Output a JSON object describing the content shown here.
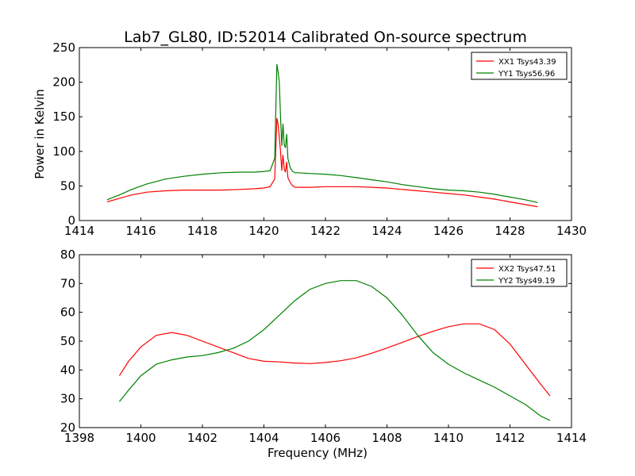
{
  "figure": {
    "title": "Lab7_GL80, ID:52014 Calibrated On-source spectrum"
  },
  "chart_data": [
    {
      "type": "line",
      "title": "Lab7_GL80, ID:52014 Calibrated On-source spectrum",
      "xlabel": "",
      "ylabel": "Power in Kelvin",
      "xlim": [
        1414,
        1430
      ],
      "ylim": [
        0,
        250
      ],
      "xticks": [
        "1414",
        "1416",
        "1418",
        "1420",
        "1422",
        "1424",
        "1426",
        "1428",
        "1430"
      ],
      "yticks": [
        "0",
        "50",
        "100",
        "150",
        "200",
        "250"
      ],
      "grid": false,
      "legend_position": "top-right",
      "series": [
        {
          "name": "XX1 Tsys43.39",
          "color": "#ff0000",
          "x": [
            1414.9,
            1415.3,
            1415.7,
            1416.2,
            1416.8,
            1417.4,
            1418.0,
            1418.6,
            1419.2,
            1419.7,
            1420.0,
            1420.2,
            1420.35,
            1420.42,
            1420.46,
            1420.5,
            1420.54,
            1420.58,
            1420.62,
            1420.66,
            1420.7,
            1420.74,
            1420.78,
            1420.82,
            1420.86,
            1420.9,
            1420.94,
            1420.98,
            1421.02,
            1421.1,
            1421.5,
            1422.0,
            1422.5,
            1423.0,
            1423.5,
            1424.0,
            1424.5,
            1425.0,
            1425.5,
            1426.0,
            1426.5,
            1427.0,
            1427.5,
            1428.0,
            1428.5,
            1428.9
          ],
          "y": [
            27,
            32,
            37,
            41,
            43,
            44,
            44,
            44,
            45,
            46,
            47,
            49,
            60,
            148,
            140,
            120,
            100,
            72,
            95,
            75,
            70,
            85,
            62,
            58,
            55,
            52,
            50,
            49,
            48,
            48,
            48,
            49,
            49,
            49,
            48,
            47,
            45,
            43,
            41,
            39,
            37,
            34,
            31,
            27,
            23,
            20
          ]
        },
        {
          "name": "YY1 Tsys56.96",
          "color": "#008000",
          "x": [
            1414.9,
            1415.3,
            1415.7,
            1416.2,
            1416.8,
            1417.4,
            1418.0,
            1418.6,
            1419.2,
            1419.7,
            1420.0,
            1420.2,
            1420.35,
            1420.42,
            1420.46,
            1420.5,
            1420.54,
            1420.58,
            1420.62,
            1420.66,
            1420.7,
            1420.74,
            1420.78,
            1420.82,
            1420.86,
            1420.9,
            1420.94,
            1420.98,
            1421.02,
            1421.1,
            1421.5,
            1422.0,
            1422.5,
            1423.0,
            1423.5,
            1424.0,
            1424.5,
            1425.0,
            1425.5,
            1426.0,
            1426.5,
            1427.0,
            1427.5,
            1428.0,
            1428.5,
            1428.9
          ],
          "y": [
            30,
            37,
            45,
            53,
            60,
            64,
            67,
            69,
            70,
            70,
            71,
            72,
            90,
            226,
            215,
            200,
            150,
            108,
            140,
            110,
            105,
            125,
            90,
            82,
            76,
            73,
            71,
            70,
            69,
            69,
            68,
            67,
            65,
            62,
            59,
            56,
            52,
            49,
            46,
            44,
            43,
            41,
            38,
            34,
            30,
            26
          ]
        }
      ]
    },
    {
      "type": "line",
      "title": "",
      "xlabel": "Frequency (MHz)",
      "ylabel": "",
      "xlim": [
        1398,
        1414
      ],
      "ylim": [
        20,
        80
      ],
      "xticks": [
        "1398",
        "1400",
        "1402",
        "1404",
        "1406",
        "1408",
        "1410",
        "1412",
        "1414"
      ],
      "yticks": [
        "20",
        "30",
        "40",
        "50",
        "60",
        "70",
        "80"
      ],
      "grid": false,
      "legend_position": "top-right",
      "series": [
        {
          "name": "XX2 Tsys47.51",
          "color": "#ff0000",
          "x": [
            1399.3,
            1399.6,
            1400.0,
            1400.5,
            1401.0,
            1401.5,
            1402.0,
            1402.5,
            1403.0,
            1403.5,
            1404.0,
            1404.5,
            1405.0,
            1405.5,
            1406.0,
            1406.5,
            1407.0,
            1407.5,
            1408.0,
            1408.5,
            1409.0,
            1409.5,
            1410.0,
            1410.5,
            1411.0,
            1411.5,
            1412.0,
            1412.5,
            1413.0,
            1413.3
          ],
          "y": [
            38,
            43,
            48,
            52,
            53,
            52,
            50,
            48,
            46,
            44,
            43,
            42.8,
            42.4,
            42.2,
            42.6,
            43.2,
            44.2,
            45.8,
            47.6,
            49.6,
            51.6,
            53.4,
            55,
            56,
            56,
            54,
            49,
            42,
            35,
            31
          ]
        },
        {
          "name": "YY2 Tsys49.19",
          "color": "#008000",
          "x": [
            1399.3,
            1399.6,
            1400.0,
            1400.5,
            1401.0,
            1401.5,
            1402.0,
            1402.5,
            1403.0,
            1403.5,
            1404.0,
            1404.5,
            1405.0,
            1405.5,
            1406.0,
            1406.5,
            1407.0,
            1407.5,
            1408.0,
            1408.5,
            1409.0,
            1409.5,
            1410.0,
            1410.5,
            1411.0,
            1411.5,
            1412.0,
            1412.5,
            1413.0,
            1413.3
          ],
          "y": [
            29,
            33,
            38,
            42,
            43.5,
            44.5,
            45,
            46,
            47.5,
            50,
            54,
            59,
            64,
            68,
            70,
            71,
            71,
            69,
            65,
            59,
            52,
            46,
            42,
            39,
            36.5,
            34,
            31,
            28,
            24,
            22.5
          ]
        }
      ]
    }
  ]
}
